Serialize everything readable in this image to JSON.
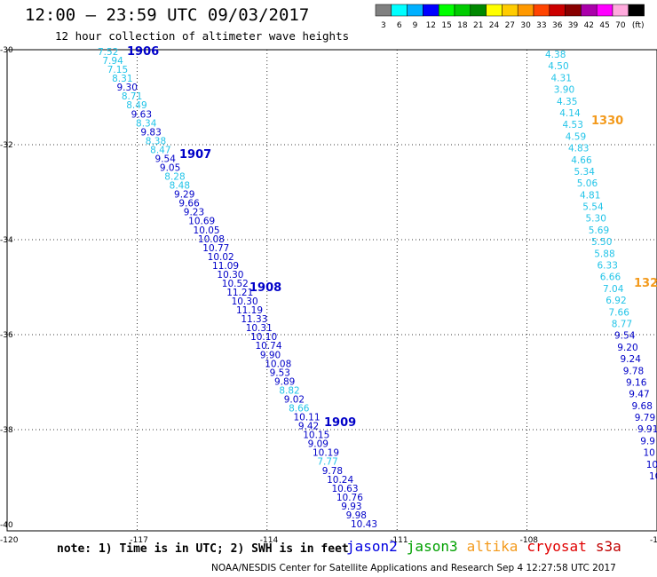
{
  "header": {
    "title": "12:00 – 23:59 UTC 09/03/2017",
    "subtitle": "12 hour collection of altimeter wave heights"
  },
  "color_scale": {
    "thresholds": [
      "3",
      "6",
      "9",
      "12",
      "15",
      "18",
      "21",
      "24",
      "27",
      "30",
      "33",
      "36",
      "39",
      "42",
      "45",
      "70",
      "(ft)"
    ],
    "colors": [
      "#808080",
      "#00ffff",
      "#00b0ff",
      "#0000ff",
      "#00ff00",
      "#00cc00",
      "#008800",
      "#ffff00",
      "#ffcc00",
      "#ff9900",
      "#ff4400",
      "#cc0000",
      "#880000",
      "#aa00aa",
      "#ff00ff",
      "#ffaadd",
      "#000000"
    ]
  },
  "colors": {
    "light": "#22c4e8",
    "dark": "#0000c8",
    "pass_orange": "#f39a1c"
  },
  "axes": {
    "lat_labels": [
      "-30",
      "-32",
      "-34",
      "-36",
      "-38",
      "-40"
    ],
    "lon_labels": [
      "-120",
      "-117",
      "-114",
      "-111",
      "-108",
      "-105"
    ]
  },
  "passes": [
    {
      "label": "1906",
      "lat": -30.0,
      "color": "dark"
    },
    {
      "label": "1907",
      "lat": -32.25,
      "color": "dark"
    },
    {
      "label": "1908",
      "lat": -35.0,
      "color": "dark"
    },
    {
      "label": "1909",
      "lat": -37.8,
      "color": "dark"
    },
    {
      "label": "1330",
      "lat": -31.5,
      "color": "orange"
    },
    {
      "label": "132",
      "lat": -35.0,
      "color": "orange"
    }
  ],
  "track_west": [
    {
      "v": "7.52",
      "c": "light"
    },
    {
      "v": "7.94",
      "c": "light"
    },
    {
      "v": "7.15",
      "c": "light"
    },
    {
      "v": "8.31",
      "c": "light"
    },
    {
      "v": "9.30",
      "c": "dark"
    },
    {
      "v": "8.71",
      "c": "light"
    },
    {
      "v": "8.49",
      "c": "light"
    },
    {
      "v": "9.63",
      "c": "dark"
    },
    {
      "v": "8.34",
      "c": "light"
    },
    {
      "v": "9.83",
      "c": "dark"
    },
    {
      "v": "8.38",
      "c": "light"
    },
    {
      "v": "8.47",
      "c": "light"
    },
    {
      "v": "9.54",
      "c": "dark"
    },
    {
      "v": "9.05",
      "c": "dark"
    },
    {
      "v": "8.28",
      "c": "light"
    },
    {
      "v": "8.48",
      "c": "light"
    },
    {
      "v": "9.29",
      "c": "dark"
    },
    {
      "v": "9.66",
      "c": "dark"
    },
    {
      "v": "9.23",
      "c": "dark"
    },
    {
      "v": "10.69",
      "c": "dark"
    },
    {
      "v": "10.05",
      "c": "dark"
    },
    {
      "v": "10.08",
      "c": "dark"
    },
    {
      "v": "10.77",
      "c": "dark"
    },
    {
      "v": "10.02",
      "c": "dark"
    },
    {
      "v": "11.09",
      "c": "dark"
    },
    {
      "v": "10.30",
      "c": "dark"
    },
    {
      "v": "10.52",
      "c": "dark"
    },
    {
      "v": "11.21",
      "c": "dark"
    },
    {
      "v": "10.30",
      "c": "dark"
    },
    {
      "v": "11.19",
      "c": "dark"
    },
    {
      "v": "11.33",
      "c": "dark"
    },
    {
      "v": "10.31",
      "c": "dark"
    },
    {
      "v": "10.10",
      "c": "dark"
    },
    {
      "v": "10.74",
      "c": "dark"
    },
    {
      "v": "9.90",
      "c": "dark"
    },
    {
      "v": "10.08",
      "c": "dark"
    },
    {
      "v": "9.53",
      "c": "dark"
    },
    {
      "v": "9.89",
      "c": "dark"
    },
    {
      "v": "8.82",
      "c": "light"
    },
    {
      "v": "9.02",
      "c": "dark"
    },
    {
      "v": "8.66",
      "c": "light"
    },
    {
      "v": "10.11",
      "c": "dark"
    },
    {
      "v": "9.42",
      "c": "dark"
    },
    {
      "v": "10.15",
      "c": "dark"
    },
    {
      "v": "9.09",
      "c": "dark"
    },
    {
      "v": "10.19",
      "c": "dark"
    },
    {
      "v": "7.77",
      "c": "light"
    },
    {
      "v": "9.78",
      "c": "dark"
    },
    {
      "v": "10.24",
      "c": "dark"
    },
    {
      "v": "10.63",
      "c": "dark"
    },
    {
      "v": "10.76",
      "c": "dark"
    },
    {
      "v": "9.93",
      "c": "dark"
    },
    {
      "v": "9.98",
      "c": "dark"
    },
    {
      "v": "10.43",
      "c": "dark"
    }
  ],
  "track_east": [
    {
      "v": "4.38",
      "c": "light"
    },
    {
      "v": "4.50",
      "c": "light"
    },
    {
      "v": "4.31",
      "c": "light"
    },
    {
      "v": "3.90",
      "c": "light"
    },
    {
      "v": "4.35",
      "c": "light"
    },
    {
      "v": "4.14",
      "c": "light"
    },
    {
      "v": "4.53",
      "c": "light"
    },
    {
      "v": "4.59",
      "c": "light"
    },
    {
      "v": "4.83",
      "c": "light"
    },
    {
      "v": "4.66",
      "c": "light"
    },
    {
      "v": "5.34",
      "c": "light"
    },
    {
      "v": "5.06",
      "c": "light"
    },
    {
      "v": "4.81",
      "c": "light"
    },
    {
      "v": "5.54",
      "c": "light"
    },
    {
      "v": "5.30",
      "c": "light"
    },
    {
      "v": "5.69",
      "c": "light"
    },
    {
      "v": "5.50",
      "c": "light"
    },
    {
      "v": "5.88",
      "c": "light"
    },
    {
      "v": "6.33",
      "c": "light"
    },
    {
      "v": "6.66",
      "c": "light"
    },
    {
      "v": "7.04",
      "c": "light"
    },
    {
      "v": "6.92",
      "c": "light"
    },
    {
      "v": "7.66",
      "c": "light"
    },
    {
      "v": "8.77",
      "c": "light"
    },
    {
      "v": "9.54",
      "c": "dark"
    },
    {
      "v": "9.20",
      "c": "dark"
    },
    {
      "v": "9.24",
      "c": "dark"
    },
    {
      "v": "9.78",
      "c": "dark"
    },
    {
      "v": "9.16",
      "c": "dark"
    },
    {
      "v": "9.47",
      "c": "dark"
    },
    {
      "v": "9.68",
      "c": "dark"
    },
    {
      "v": "9.79",
      "c": "dark"
    },
    {
      "v": "9.91",
      "c": "dark"
    },
    {
      "v": "9.9",
      "c": "dark"
    },
    {
      "v": "10",
      "c": "dark"
    },
    {
      "v": "10",
      "c": "dark"
    },
    {
      "v": "10",
      "c": "dark"
    }
  ],
  "note": "note: 1) Time is in UTC; 2) SWH is in feet",
  "satellites": [
    {
      "name": "jason2",
      "color": "#0000e0"
    },
    {
      "name": "jason3",
      "color": "#00a000"
    },
    {
      "name": "altika",
      "color": "#f39a1c"
    },
    {
      "name": "cryosat",
      "color": "#e00000"
    },
    {
      "name": "s3a",
      "color": "#c00000"
    }
  ],
  "credit": "NOAA/NESDIS Center for Satellite Applications and Research    Sep  4 12:27:58 UTC 2017"
}
